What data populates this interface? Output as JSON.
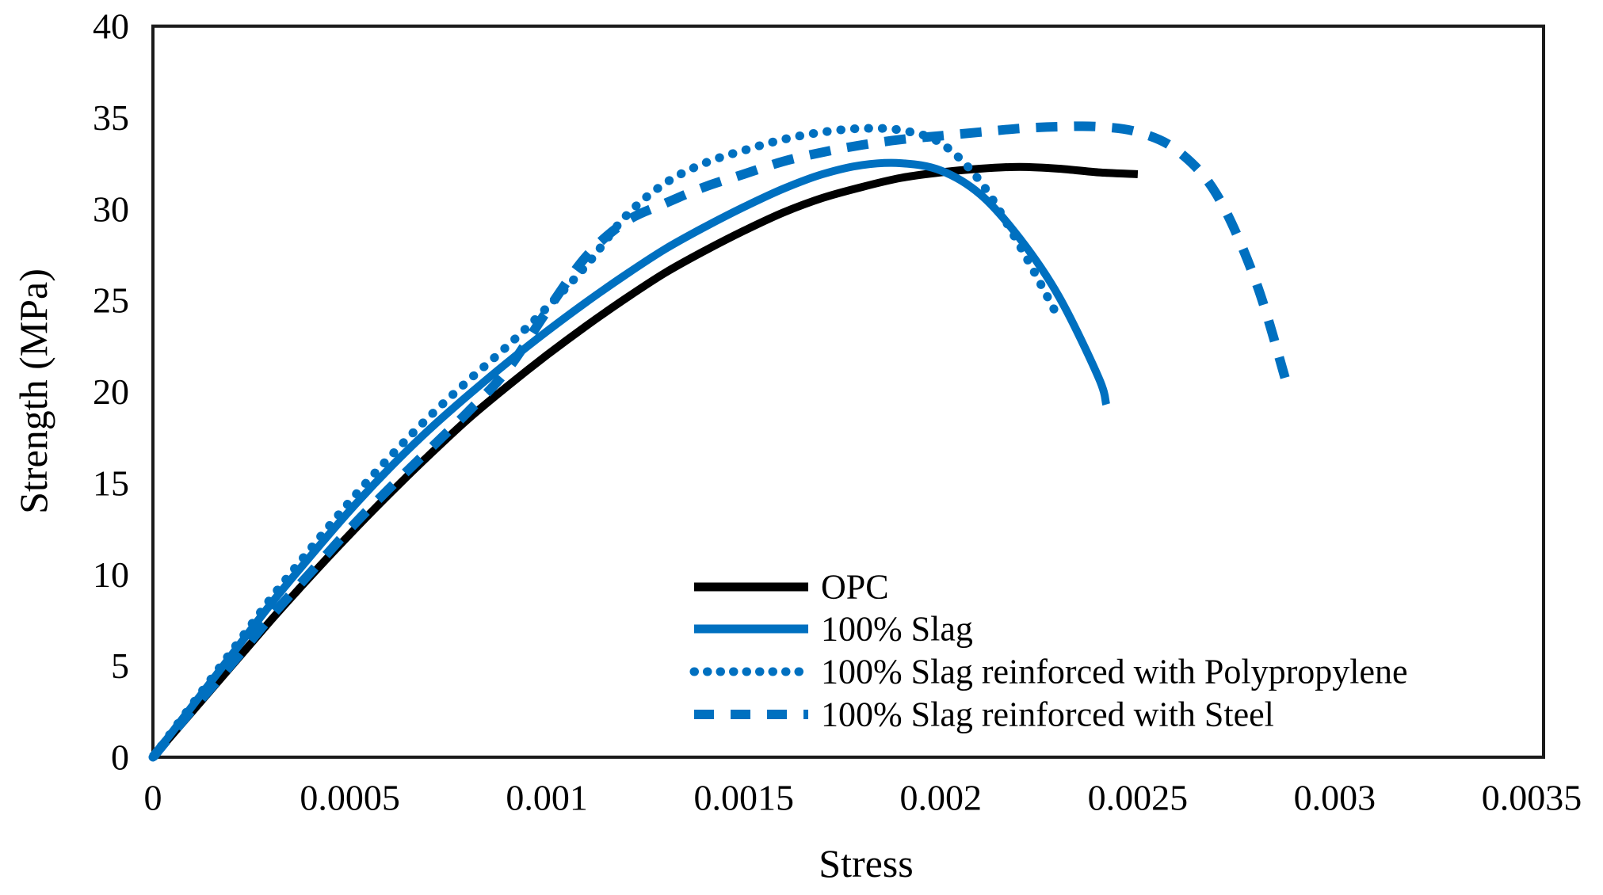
{
  "figure": {
    "background": "#ffffff",
    "accent_blue": "#0070C0",
    "line_black": "#000000"
  },
  "chart_data": {
    "type": "line",
    "title": "",
    "xlabel": "Stress",
    "ylabel": "Strength (MPa)",
    "xlim": [
      0,
      0.0035
    ],
    "ylim": [
      0,
      40
    ],
    "grid": false,
    "legend_position": "inside-bottom-center",
    "x_tick_values": [
      0,
      0.0005,
      0.001,
      0.0015,
      0.002,
      0.0025,
      0.003,
      0.0035
    ],
    "x_tick_labels": [
      "0",
      "0.0005",
      "0.001",
      "0.0015",
      "0.002",
      "0.0025",
      "0.003",
      "0.0035"
    ],
    "y_tick_values": [
      0,
      5,
      10,
      15,
      20,
      25,
      30,
      35,
      40
    ],
    "y_tick_labels": [
      "0",
      "5",
      "10",
      "15",
      "20",
      "25",
      "30",
      "35",
      "40"
    ],
    "series": [
      {
        "name": "OPC",
        "color": "#000000",
        "line_style": "solid",
        "points": [
          [
            0,
            0
          ],
          [
            0.0001,
            2.5
          ],
          [
            0.0002,
            5.0
          ],
          [
            0.0003,
            7.5
          ],
          [
            0.0004,
            9.9
          ],
          [
            0.0005,
            12.2
          ],
          [
            0.0006,
            14.4
          ],
          [
            0.0007,
            16.5
          ],
          [
            0.0008,
            18.5
          ],
          [
            0.0009,
            20.3
          ],
          [
            0.001,
            22.0
          ],
          [
            0.0011,
            23.6
          ],
          [
            0.0012,
            25.1
          ],
          [
            0.0013,
            26.5
          ],
          [
            0.0014,
            27.7
          ],
          [
            0.0015,
            28.8
          ],
          [
            0.0016,
            29.8
          ],
          [
            0.0017,
            30.6
          ],
          [
            0.0018,
            31.2
          ],
          [
            0.0019,
            31.7
          ],
          [
            0.002,
            32.0
          ],
          [
            0.0021,
            32.2
          ],
          [
            0.0022,
            32.3
          ],
          [
            0.0023,
            32.2
          ],
          [
            0.0024,
            32.0
          ],
          [
            0.0025,
            31.9
          ]
        ]
      },
      {
        "name": "100% Slag",
        "color": "#0070C0",
        "line_style": "solid",
        "points": [
          [
            0,
            0
          ],
          [
            0.0001,
            2.8
          ],
          [
            0.0002,
            5.6
          ],
          [
            0.0003,
            8.4
          ],
          [
            0.0004,
            11.0
          ],
          [
            0.0005,
            13.5
          ],
          [
            0.0006,
            15.8
          ],
          [
            0.0007,
            17.9
          ],
          [
            0.0008,
            19.8
          ],
          [
            0.0009,
            21.6
          ],
          [
            0.001,
            23.3
          ],
          [
            0.0011,
            24.9
          ],
          [
            0.0012,
            26.4
          ],
          [
            0.0013,
            27.8
          ],
          [
            0.0014,
            29.0
          ],
          [
            0.0015,
            30.1
          ],
          [
            0.0016,
            31.1
          ],
          [
            0.0017,
            31.9
          ],
          [
            0.0018,
            32.4
          ],
          [
            0.0019,
            32.5
          ],
          [
            0.002,
            32.1
          ],
          [
            0.0021,
            30.8
          ],
          [
            0.0022,
            28.4
          ],
          [
            0.0023,
            25.2
          ],
          [
            0.0024,
            20.8
          ],
          [
            0.00242,
            19.3
          ]
        ]
      },
      {
        "name": "100% Slag reinforced with Polypropylene",
        "color": "#0070C0",
        "line_style": "dotted",
        "points": [
          [
            0,
            0
          ],
          [
            0.0001,
            2.9
          ],
          [
            0.0002,
            5.8
          ],
          [
            0.0003,
            8.7
          ],
          [
            0.0004,
            11.4
          ],
          [
            0.0005,
            14.0
          ],
          [
            0.0006,
            16.4
          ],
          [
            0.0007,
            18.6
          ],
          [
            0.0008,
            20.6
          ],
          [
            0.0009,
            22.5
          ],
          [
            0.001,
            24.6
          ],
          [
            0.0011,
            26.9
          ],
          [
            0.0012,
            29.6
          ],
          [
            0.0013,
            31.4
          ],
          [
            0.0014,
            32.5
          ],
          [
            0.0015,
            33.2
          ],
          [
            0.0016,
            33.8
          ],
          [
            0.0017,
            34.2
          ],
          [
            0.0018,
            34.4
          ],
          [
            0.0019,
            34.3
          ],
          [
            0.002,
            33.6
          ],
          [
            0.0021,
            31.5
          ],
          [
            0.0022,
            28.0
          ],
          [
            0.0023,
            24.0
          ]
        ]
      },
      {
        "name": "100% Slag reinforced with Steel",
        "color": "#0070C0",
        "line_style": "dashed",
        "points": [
          [
            0,
            0
          ],
          [
            0.0001,
            2.6
          ],
          [
            0.0002,
            5.1
          ],
          [
            0.0003,
            7.7
          ],
          [
            0.0004,
            10.1
          ],
          [
            0.0005,
            12.5
          ],
          [
            0.0006,
            14.7
          ],
          [
            0.0007,
            16.8
          ],
          [
            0.0008,
            18.9
          ],
          [
            0.0009,
            21.2
          ],
          [
            0.001,
            24.4
          ],
          [
            0.0011,
            27.4
          ],
          [
            0.0012,
            29.3
          ],
          [
            0.0013,
            30.3
          ],
          [
            0.0014,
            31.2
          ],
          [
            0.0015,
            31.9
          ],
          [
            0.0016,
            32.6
          ],
          [
            0.0017,
            33.1
          ],
          [
            0.0018,
            33.5
          ],
          [
            0.0019,
            33.8
          ],
          [
            0.002,
            34.0
          ],
          [
            0.0021,
            34.2
          ],
          [
            0.0022,
            34.4
          ],
          [
            0.0023,
            34.5
          ],
          [
            0.0024,
            34.5
          ],
          [
            0.0025,
            34.2
          ],
          [
            0.0026,
            33.2
          ],
          [
            0.0027,
            30.8
          ],
          [
            0.0028,
            26.0
          ],
          [
            0.00288,
            20.3
          ]
        ]
      }
    ]
  }
}
